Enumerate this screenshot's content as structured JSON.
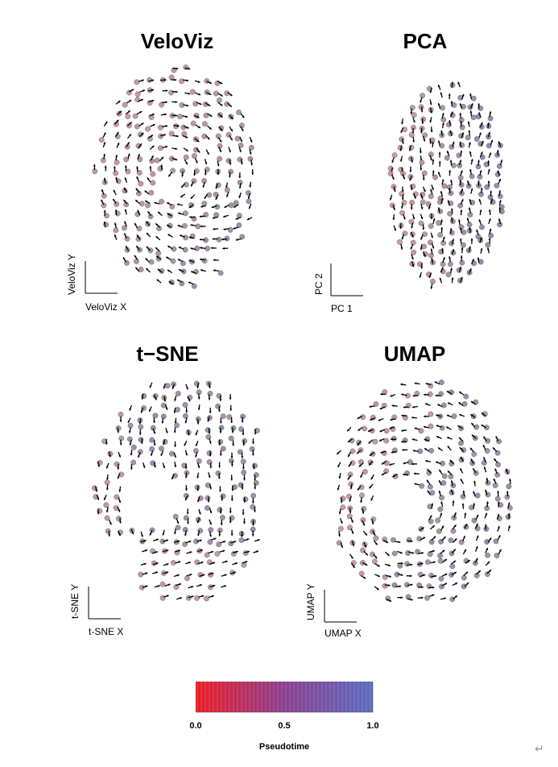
{
  "panels": [
    {
      "title": "VeloViz",
      "xlabel": "VeloViz X",
      "ylabel": "VeloViz Y"
    },
    {
      "title": "PCA",
      "xlabel": "PC 1",
      "ylabel": "PC 2"
    },
    {
      "title": "t−SNE",
      "xlabel": "t-SNE X",
      "ylabel": "t-SNE Y"
    },
    {
      "title": "UMAP",
      "xlabel": "UMAP X",
      "ylabel": "UMAP Y"
    }
  ],
  "colorbar": {
    "title": "Pseudotime",
    "ticks": [
      "0.0",
      "0.5",
      "1.0"
    ],
    "range": [
      0.0,
      1.0
    ],
    "low_color": "#ee1c24",
    "mid_color": "#8a3f8f",
    "high_color": "#5a6cc0"
  },
  "colors": {
    "arrow": "#000000",
    "point_low": "#c98a8a",
    "point_high": "#7f7aa3"
  },
  "icons": {
    "return": "return-arrow-icon"
  },
  "chart_data": [
    {
      "type": "scatter",
      "title": "VeloViz",
      "xlabel": "VeloViz X",
      "ylabel": "VeloViz Y",
      "color_variable": "Pseudotime",
      "color_range": [
        0,
        1
      ],
      "overlay": "velocity arrows",
      "grid": false
    },
    {
      "type": "scatter",
      "title": "PCA",
      "xlabel": "PC 1",
      "ylabel": "PC 2",
      "color_variable": "Pseudotime",
      "color_range": [
        0,
        1
      ],
      "overlay": "velocity arrows",
      "grid": false
    },
    {
      "type": "scatter",
      "title": "t−SNE",
      "xlabel": "t-SNE X",
      "ylabel": "t-SNE Y",
      "color_variable": "Pseudotime",
      "color_range": [
        0,
        1
      ],
      "overlay": "velocity arrows",
      "grid": false
    },
    {
      "type": "scatter",
      "title": "UMAP",
      "xlabel": "UMAP X",
      "ylabel": "UMAP Y",
      "color_variable": "Pseudotime",
      "color_range": [
        0,
        1
      ],
      "overlay": "velocity arrows",
      "grid": false
    }
  ]
}
